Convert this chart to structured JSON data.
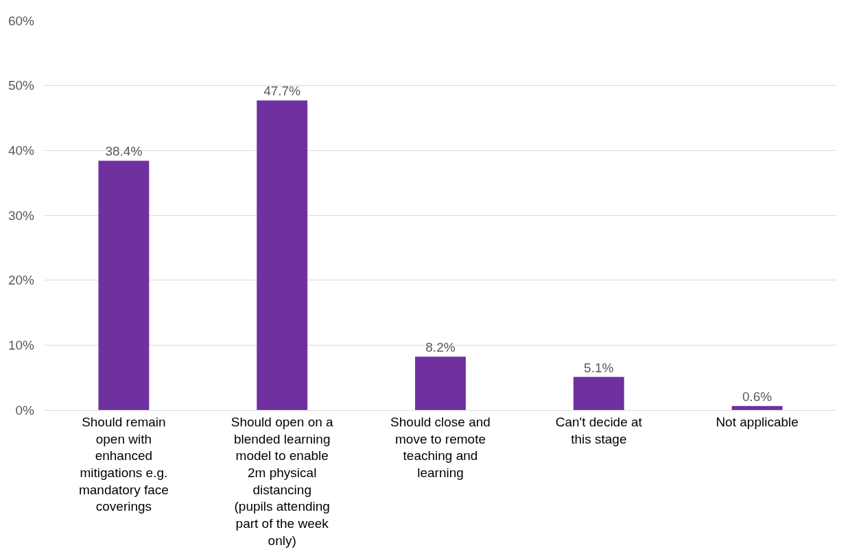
{
  "chart_data": {
    "type": "bar",
    "categories": [
      "Should remain open with enhanced mitigations e.g. mandatory face coverings",
      "Should open on a blended learning model to enable 2m physical distancing (pupils attending part of the week only)",
      "Should close and move to remote teaching and learning",
      "Can't decide at this stage",
      "Not applicable"
    ],
    "values": [
      38.4,
      47.7,
      8.2,
      5.1,
      0.6
    ],
    "value_labels": [
      "38.4%",
      "47.7%",
      "8.2%",
      "5.1%",
      "0.6%"
    ],
    "color": "#7030a0",
    "ylim": [
      0,
      60
    ],
    "yticks": [
      {
        "value": 0,
        "label": "0%"
      },
      {
        "value": 10,
        "label": "10%"
      },
      {
        "value": 20,
        "label": "20%"
      },
      {
        "value": 30,
        "label": "30%"
      },
      {
        "value": 40,
        "label": "40%"
      },
      {
        "value": 50,
        "label": "50%"
      },
      {
        "value": 60,
        "label": "60%"
      }
    ],
    "grid": "y",
    "legend": false
  }
}
